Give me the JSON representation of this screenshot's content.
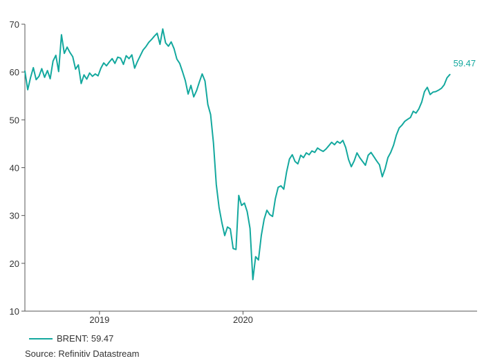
{
  "chart_data": {
    "type": "line",
    "title": "",
    "xlabel": "",
    "ylabel": "",
    "ylim": [
      10,
      70
    ],
    "yticks": [
      10,
      20,
      30,
      40,
      50,
      60,
      70
    ],
    "xticks": [
      {
        "label": "2019",
        "week": 27
      },
      {
        "label": "2020",
        "week": 78
      }
    ],
    "grid": false,
    "series": [
      {
        "name": "BRENT",
        "color": "#13a89e",
        "end_label": "59.47",
        "values": [
          60.2,
          56.3,
          58.8,
          60.9,
          58.4,
          59.1,
          60.7,
          58.9,
          60.3,
          58.6,
          62.3,
          63.5,
          60.1,
          67.8,
          63.9,
          65.2,
          64.1,
          63.2,
          60.6,
          61.5,
          57.6,
          59.4,
          58.5,
          59.8,
          59.1,
          59.6,
          59.2,
          60.8,
          61.9,
          61.3,
          62.1,
          62.8,
          61.8,
          63.1,
          62.9,
          61.6,
          63.4,
          62.8,
          63.6,
          60.8,
          62.2,
          63.4,
          64.6,
          65.3,
          66.2,
          66.8,
          67.5,
          68.1,
          65.8,
          69.0,
          66.1,
          65.4,
          66.3,
          64.9,
          62.7,
          61.8,
          60.1,
          58.2,
          55.4,
          57.2,
          54.8,
          56.1,
          57.9,
          59.6,
          58.1,
          53.2,
          51.1,
          45.2,
          36.5,
          31.7,
          28.5,
          25.8,
          27.6,
          27.2,
          23.1,
          22.9,
          34.2,
          32.1,
          32.6,
          30.8,
          27.3,
          16.6,
          21.4,
          20.7,
          25.8,
          29.2,
          31.1,
          30.2,
          29.8,
          33.5,
          35.9,
          36.2,
          35.5,
          39.1,
          41.8,
          42.7,
          41.3,
          40.8,
          42.6,
          42.1,
          43.1,
          42.7,
          43.5,
          43.2,
          44.1,
          43.7,
          43.4,
          43.9,
          44.6,
          45.3,
          44.8,
          45.5,
          45.1,
          45.7,
          44.2,
          41.7,
          40.2,
          41.4,
          43.1,
          42.1,
          41.3,
          40.5,
          42.6,
          43.2,
          42.3,
          41.4,
          40.6,
          38.1,
          39.8,
          42.1,
          43.2,
          44.7,
          46.8,
          48.3,
          48.9,
          49.7,
          50.1,
          50.5,
          51.8,
          51.4,
          52.3,
          53.7,
          55.9,
          56.8,
          55.3,
          55.8,
          55.9,
          56.2,
          56.6,
          57.3,
          58.8,
          59.47
        ]
      }
    ]
  },
  "legend": {
    "label": "BRENT: 59.47"
  },
  "source": "Source: Refinitiv Datastream"
}
